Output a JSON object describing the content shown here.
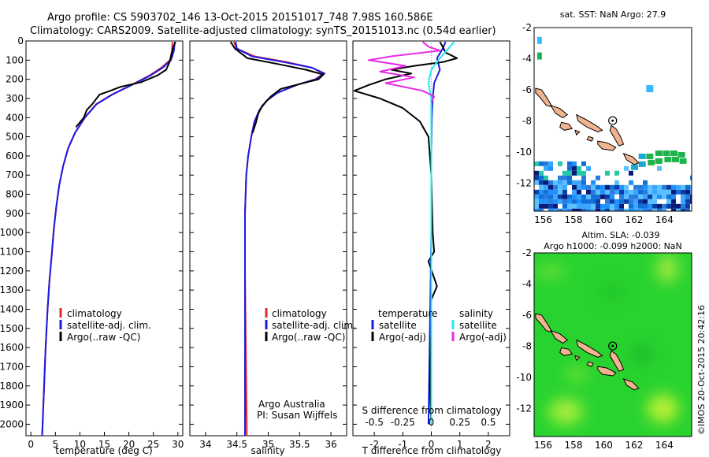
{
  "header": {
    "line1": "Argo profile: CS 5903702_146 13-Oct-2015 20151017_748 7.98S 160.586E",
    "line2": "Climatology: CARS2009. Satellite-adjusted climatology: synTS_20151013.nc (0.54d earlier)"
  },
  "credit": "Argo Australia",
  "pi": "PI: Susan Wijffels",
  "watermark": "©IMOS 20-Oct-2015 20:42:16",
  "colors": {
    "climatology": "#e8262b",
    "satellite": "#1a1ae6",
    "argo": "#000000",
    "sal_satellite": "#27e6f0",
    "sal_argo": "#e62ce6"
  },
  "chart_data": [
    {
      "id": "temperature",
      "type": "line",
      "xlabel": "temperature (deg C)",
      "ylabel": "",
      "xlim": [
        -1,
        31
      ],
      "ylim": [
        2060,
        0
      ],
      "xticks": [
        0,
        5,
        10,
        15,
        20,
        25,
        30
      ],
      "yticks": [
        0,
        100,
        200,
        300,
        400,
        500,
        600,
        700,
        800,
        900,
        1000,
        1100,
        1200,
        1300,
        1400,
        1500,
        1600,
        1700,
        1800,
        1900,
        2000
      ],
      "legend": [
        "climatology",
        "satellite-adj. clim.",
        "Argo(..raw -QC)"
      ],
      "series": [
        {
          "name": "climatology",
          "color": "#e8262b",
          "points": [
            [
              28.9,
              5
            ],
            [
              28.8,
              50
            ],
            [
              28.4,
              100
            ],
            [
              26.6,
              140
            ],
            [
              24.2,
              180
            ],
            [
              20.5,
              230
            ],
            [
              16.5,
              280
            ],
            [
              13.3,
              330
            ],
            [
              11.0,
              400
            ],
            [
              9.0,
              480
            ],
            [
              7.6,
              560
            ],
            [
              6.6,
              650
            ],
            [
              5.8,
              750
            ],
            [
              5.2,
              860
            ],
            [
              4.7,
              980
            ],
            [
              4.3,
              1100
            ],
            [
              3.8,
              1250
            ],
            [
              3.4,
              1400
            ],
            [
              3.0,
              1600
            ],
            [
              2.7,
              1800
            ],
            [
              2.4,
              2000
            ],
            [
              2.3,
              2060
            ]
          ]
        },
        {
          "name": "satellite-adj. clim.",
          "color": "#1a1ae6",
          "points": [
            [
              29.4,
              5
            ],
            [
              29.2,
              50
            ],
            [
              28.6,
              100
            ],
            [
              26.9,
              140
            ],
            [
              24.4,
              180
            ],
            [
              20.6,
              230
            ],
            [
              16.6,
              280
            ],
            [
              13.4,
              330
            ],
            [
              11.0,
              400
            ],
            [
              9.0,
              480
            ],
            [
              7.6,
              560
            ],
            [
              6.6,
              650
            ],
            [
              5.8,
              750
            ],
            [
              5.2,
              860
            ],
            [
              4.7,
              980
            ],
            [
              4.3,
              1100
            ],
            [
              3.8,
              1250
            ],
            [
              3.4,
              1400
            ],
            [
              3.0,
              1600
            ],
            [
              2.7,
              1800
            ],
            [
              2.4,
              2000
            ],
            [
              2.3,
              2060
            ]
          ]
        },
        {
          "name": "Argo(..raw -QC)",
          "color": "#000000",
          "points": [
            [
              29.5,
              5
            ],
            [
              29.1,
              30
            ],
            [
              28.8,
              60
            ],
            [
              28.3,
              110
            ],
            [
              27.6,
              150
            ],
            [
              25.8,
              180
            ],
            [
              22.5,
              215
            ],
            [
              18.2,
              240
            ],
            [
              16.0,
              262
            ],
            [
              14.0,
              280
            ],
            [
              12.5,
              330
            ],
            [
              11.4,
              360
            ],
            [
              10.8,
              400
            ],
            [
              9.2,
              450
            ]
          ]
        }
      ]
    },
    {
      "id": "salinity",
      "type": "line",
      "xlabel": "salinity",
      "ylabel": "",
      "xlim": [
        33.75,
        36.25
      ],
      "ylim": [
        2060,
        0
      ],
      "xticks": [
        34,
        34.5,
        35,
        35.5,
        36
      ],
      "legend": [
        "climatology",
        "satellite-adj. clim.",
        "Argo(..raw -QC)"
      ],
      "series": [
        {
          "name": "climatology",
          "color": "#e8262b",
          "points": [
            [
              34.45,
              5
            ],
            [
              34.5,
              40
            ],
            [
              34.78,
              80
            ],
            [
              35.3,
              110
            ],
            [
              35.7,
              140
            ],
            [
              35.88,
              170
            ],
            [
              35.75,
              200
            ],
            [
              35.45,
              230
            ],
            [
              35.15,
              270
            ],
            [
              34.98,
              310
            ],
            [
              34.86,
              360
            ],
            [
              34.78,
              420
            ],
            [
              34.73,
              500
            ],
            [
              34.68,
              600
            ],
            [
              34.65,
              700
            ],
            [
              34.63,
              900
            ],
            [
              34.63,
              1200
            ],
            [
              34.64,
              1500
            ],
            [
              34.65,
              1800
            ],
            [
              34.66,
              2060
            ]
          ]
        },
        {
          "name": "satellite-adj. clim.",
          "color": "#1a1ae6",
          "points": [
            [
              34.48,
              5
            ],
            [
              34.5,
              40
            ],
            [
              34.74,
              80
            ],
            [
              35.25,
              110
            ],
            [
              35.7,
              140
            ],
            [
              35.9,
              170
            ],
            [
              35.76,
              200
            ],
            [
              35.45,
              230
            ],
            [
              35.15,
              270
            ],
            [
              34.98,
              310
            ],
            [
              34.86,
              360
            ],
            [
              34.78,
              420
            ],
            [
              34.73,
              500
            ],
            [
              34.68,
              600
            ],
            [
              34.65,
              700
            ],
            [
              34.63,
              900
            ],
            [
              34.63,
              1200
            ],
            [
              34.63,
              1500
            ],
            [
              34.63,
              1800
            ],
            [
              34.63,
              2060
            ]
          ]
        },
        {
          "name": "Argo(..raw -QC)",
          "color": "#000000",
          "points": [
            [
              34.4,
              5
            ],
            [
              34.47,
              40
            ],
            [
              34.67,
              90
            ],
            [
              35.15,
              120
            ],
            [
              35.6,
              150
            ],
            [
              35.88,
              175
            ],
            [
              35.8,
              200
            ],
            [
              35.5,
              225
            ],
            [
              35.2,
              250
            ],
            [
              35.04,
              290
            ],
            [
              34.9,
              340
            ],
            [
              34.84,
              380
            ],
            [
              34.8,
              430
            ],
            [
              34.75,
              480
            ]
          ]
        }
      ]
    },
    {
      "id": "difference",
      "type": "line",
      "xlabel": "T difference from climatology",
      "xlabel_top": "S difference from climatology",
      "xlim": [
        -2.75,
        2.75
      ],
      "ylim": [
        2060,
        0
      ],
      "xticks": [
        -2,
        -1,
        0,
        1,
        2
      ],
      "xticks_s_labels": [
        "-0.5",
        "-0.25",
        "0",
        "0.25",
        "0.5"
      ],
      "legend": [
        "temperature",
        "satellite",
        "Argo(-adj)",
        "salinity",
        "satellite",
        "Argo(-adj)"
      ],
      "series": [
        {
          "name": "temperature satellite",
          "color": "#1a1ae6",
          "points": [
            [
              0.5,
              5
            ],
            [
              0.4,
              40
            ],
            [
              0.2,
              90
            ],
            [
              0.3,
              150
            ],
            [
              0.1,
              220
            ],
            [
              0.05,
              300
            ],
            [
              0.02,
              400
            ],
            [
              0.0,
              600
            ],
            [
              0.0,
              1000
            ],
            [
              -0.05,
              1500
            ],
            [
              -0.1,
              2000
            ]
          ]
        },
        {
          "name": "temperature Argo(-adj)",
          "color": "#000000",
          "points": [
            [
              0.3,
              5
            ],
            [
              0.4,
              30
            ],
            [
              0.5,
              60
            ],
            [
              0.9,
              90
            ],
            [
              0.4,
              110
            ],
            [
              -0.6,
              130
            ],
            [
              -1.4,
              150
            ],
            [
              -0.7,
              170
            ],
            [
              -1.6,
              200
            ],
            [
              -2.2,
              230
            ],
            [
              -2.7,
              260
            ],
            [
              -1.8,
              300
            ],
            [
              -1.0,
              350
            ],
            [
              -0.4,
              420
            ],
            [
              -0.1,
              500
            ],
            [
              0.0,
              700
            ],
            [
              0.05,
              1000
            ],
            [
              0.1,
              1100
            ],
            [
              -0.1,
              1150
            ],
            [
              0.2,
              1280
            ],
            [
              0.0,
              1350
            ],
            [
              0.0,
              1500
            ],
            [
              -0.05,
              1800
            ],
            [
              0.0,
              2000
            ]
          ]
        },
        {
          "name": "salinity satellite",
          "color": "#27e6f0",
          "points": [
            [
              0.8,
              5
            ],
            [
              0.6,
              40
            ],
            [
              0.3,
              90
            ],
            [
              0.0,
              150
            ],
            [
              -0.1,
              220
            ],
            [
              0.0,
              300
            ],
            [
              0.0,
              500
            ],
            [
              0.0,
              1000
            ],
            [
              0.0,
              1500
            ],
            [
              0.0,
              2000
            ]
          ]
        },
        {
          "name": "salinity Argo(-adj)",
          "color": "#e62ce6",
          "points": [
            [
              -0.3,
              5
            ],
            [
              -0.1,
              30
            ],
            [
              0.3,
              50
            ],
            [
              -1.4,
              80
            ],
            [
              -2.2,
              100
            ],
            [
              -0.9,
              130
            ],
            [
              -1.8,
              160
            ],
            [
              -0.6,
              190
            ],
            [
              -1.6,
              220
            ],
            [
              -0.3,
              260
            ],
            [
              0.1,
              290
            ],
            [
              0.0,
              320
            ]
          ]
        }
      ]
    },
    {
      "id": "sst-map",
      "type": "heatmap",
      "title": "sat. SST: NaN Argo: 27.9",
      "xlim": [
        155.4,
        165.8
      ],
      "ylim": [
        -13.8,
        -2
      ],
      "xticks": [
        156,
        158,
        160,
        162,
        164
      ],
      "yticks": [
        -2,
        -4,
        -6,
        -8,
        -10,
        -12
      ],
      "marker": {
        "lon": 160.586,
        "lat": -7.98
      }
    },
    {
      "id": "sla-map",
      "type": "heatmap",
      "title": "Altim. SLA: -0.039",
      "subtitle": "Argo h1000: -0.099 h2000: NaN",
      "xlim": [
        155.4,
        165.8
      ],
      "ylim": [
        -13.8,
        -2
      ],
      "xticks": [
        156,
        158,
        160,
        162,
        164
      ],
      "yticks": [
        -2,
        -4,
        -6,
        -8,
        -10,
        -12
      ],
      "marker": {
        "lon": 160.586,
        "lat": -7.98
      }
    }
  ]
}
